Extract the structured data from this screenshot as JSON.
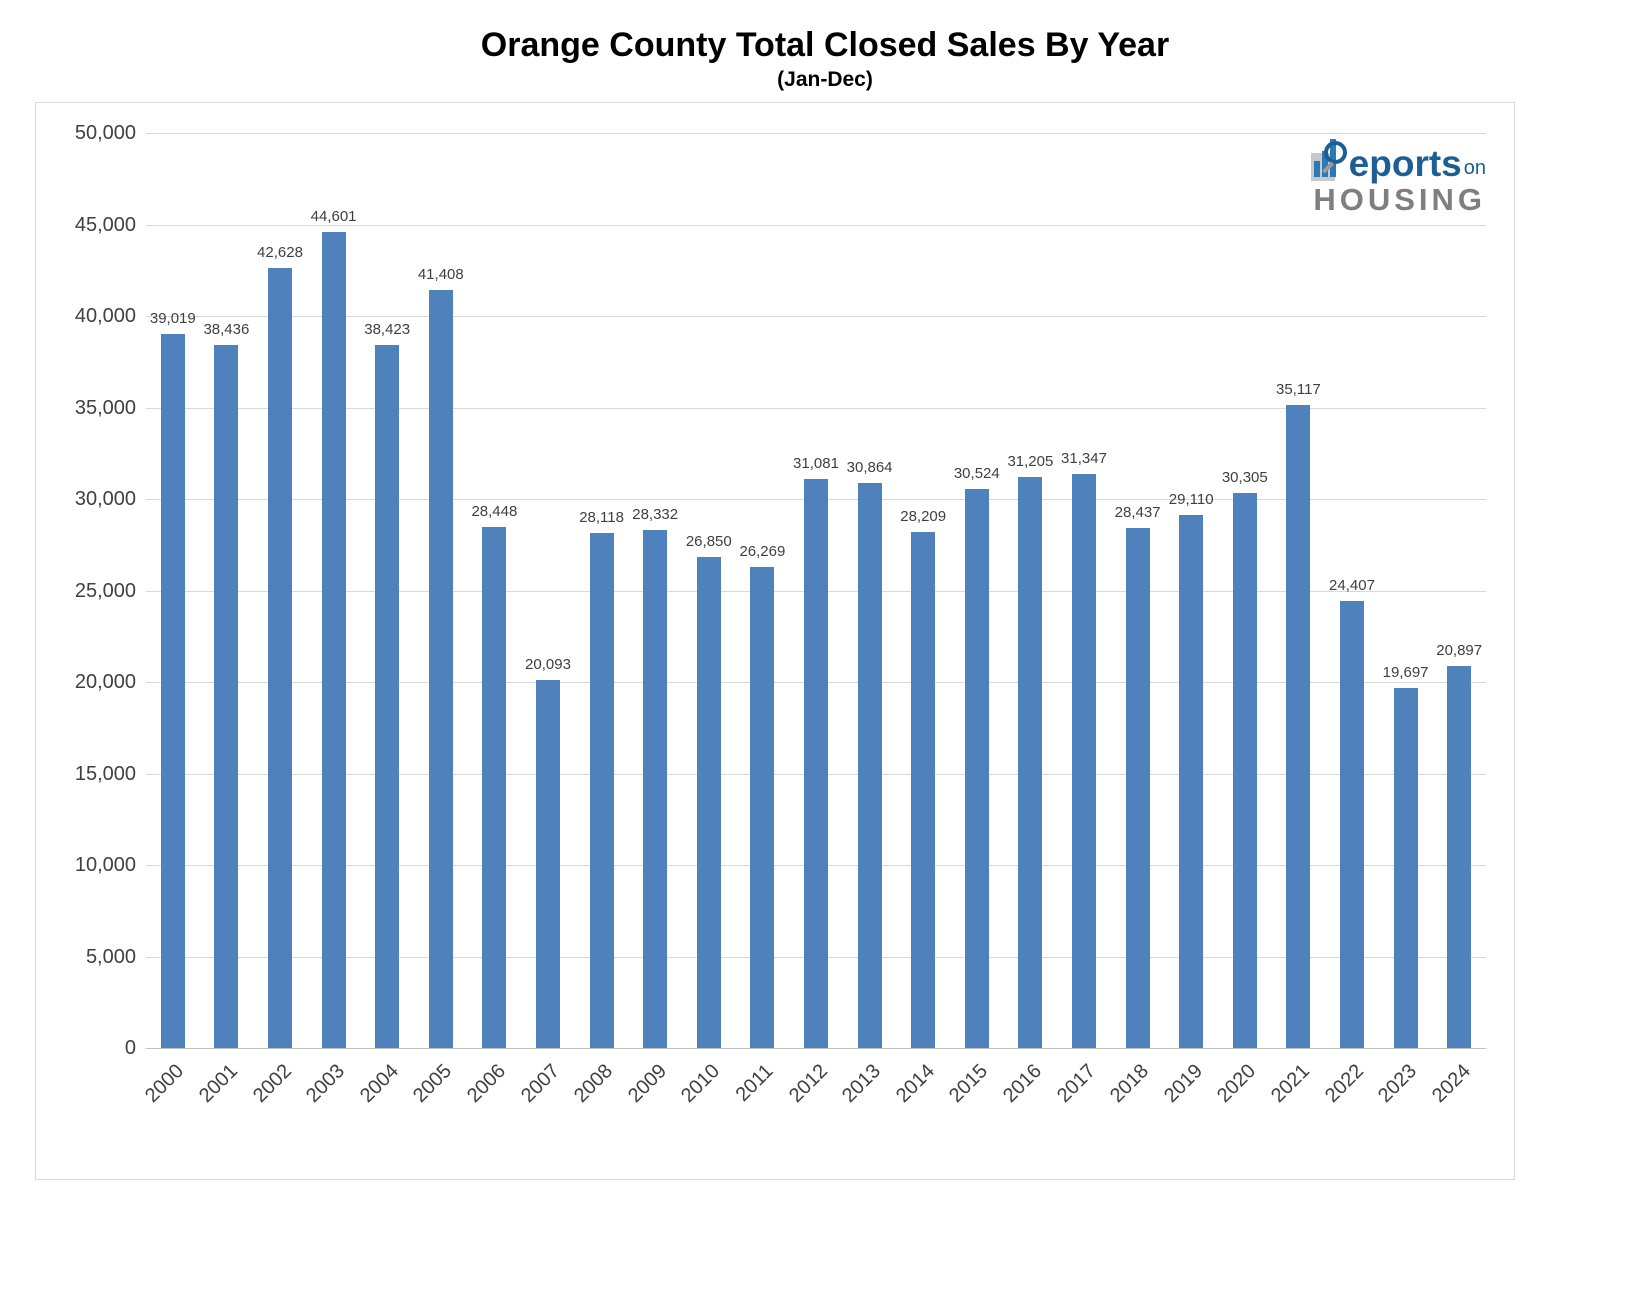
{
  "chart_data": {
    "type": "bar",
    "title": "Orange County Total Closed Sales By Year",
    "subtitle": "(Jan-Dec)",
    "categories": [
      "2000",
      "2001",
      "2002",
      "2003",
      "2004",
      "2005",
      "2006",
      "2007",
      "2008",
      "2009",
      "2010",
      "2011",
      "2012",
      "2013",
      "2014",
      "2015",
      "2016",
      "2017",
      "2018",
      "2019",
      "2020",
      "2021",
      "2022",
      "2023",
      "2024"
    ],
    "values": [
      39019,
      38436,
      42628,
      44601,
      38423,
      41408,
      28448,
      20093,
      28118,
      28332,
      26850,
      26269,
      31081,
      30864,
      28209,
      30524,
      31205,
      31347,
      28437,
      29110,
      30305,
      35117,
      24407,
      19697,
      20897
    ],
    "xlabel": "",
    "ylabel": "",
    "ylim": [
      0,
      50000
    ],
    "ytick_step": 5000,
    "grid": true,
    "legend": false,
    "value_labels": true,
    "bar_color": "#4F81BD",
    "grid_color": "#d9d9d9",
    "axis_line_color": "#bfbfbf",
    "tick_label_color": "#404040",
    "value_label_color": "#3f3f3f"
  },
  "logo": {
    "reports": "eports",
    "on": "on",
    "housing": "HOUSING"
  }
}
